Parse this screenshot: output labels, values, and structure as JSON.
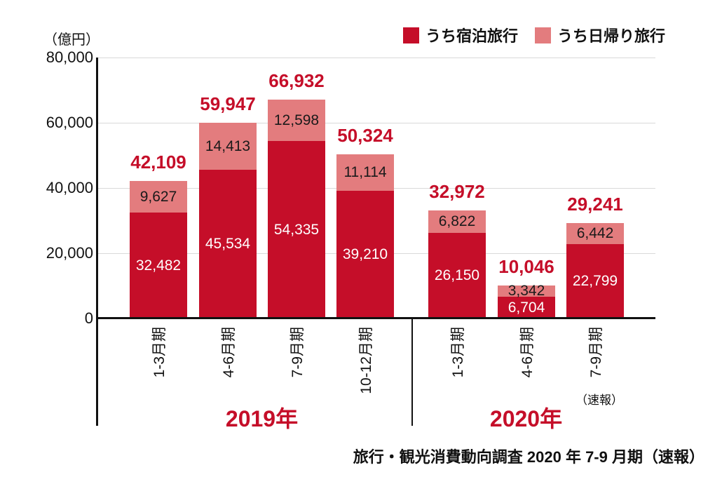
{
  "unit_label": "（億円）",
  "legend": {
    "items": [
      {
        "label": "うち宿泊旅行",
        "color": "#C50E29"
      },
      {
        "label": "うち日帰り旅行",
        "color": "#E37C7E"
      }
    ]
  },
  "source_caption": "旅行・観光消費動向調査 2020 年 7-9 月期（速報）",
  "chart_data": {
    "type": "bar",
    "stacked": true,
    "unit": "億円",
    "ylim": [
      0,
      80000
    ],
    "yticks": [
      0,
      20000,
      40000,
      60000,
      80000
    ],
    "grid": "horizontal",
    "legend_position": "top-right",
    "categories": [
      "1-3月期",
      "4-6月期",
      "7-9月期",
      "10-12月期",
      "1-3月期",
      "4-6月期",
      "7-9月期"
    ],
    "category_notes": [
      "",
      "",
      "",
      "",
      "",
      "",
      "（速報）"
    ],
    "groups": [
      {
        "label": "2019年",
        "start": 0,
        "end": 3
      },
      {
        "label": "2020年",
        "start": 4,
        "end": 6
      }
    ],
    "series": [
      {
        "name": "うち宿泊旅行",
        "color": "#C50E29",
        "label_color": "#ffffff",
        "values": [
          32482,
          45534,
          54335,
          39210,
          26150,
          6704,
          22799
        ]
      },
      {
        "name": "うち日帰り旅行",
        "color": "#E37C7E",
        "label_color": "#1a1a1a",
        "values": [
          9627,
          14413,
          12598,
          11114,
          6822,
          3342,
          6442
        ]
      }
    ],
    "totals": [
      42109,
      59947,
      66932,
      50324,
      32972,
      10046,
      29241
    ],
    "total_label_color": "#C50E29",
    "group_label_color": "#C50E29"
  }
}
